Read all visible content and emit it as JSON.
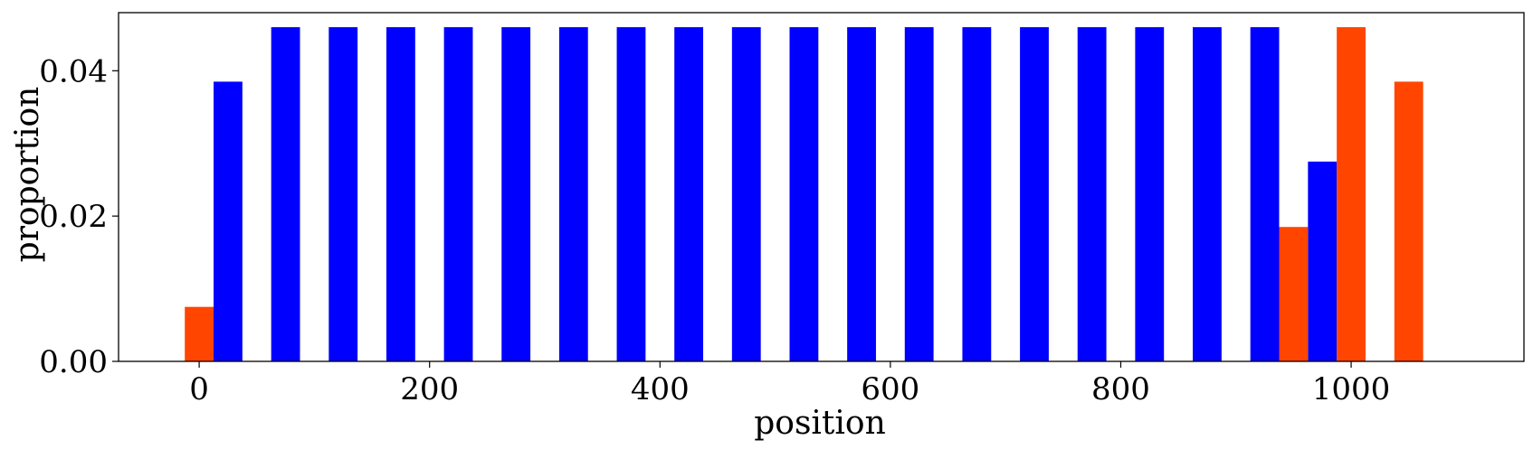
{
  "chart_data": {
    "type": "bar",
    "xlabel": "position",
    "ylabel": "proportion",
    "xlim": [
      -70,
      1150
    ],
    "ylim": [
      0,
      0.048
    ],
    "xticks": [
      0,
      200,
      400,
      600,
      800,
      1000
    ],
    "xtick_labels": [
      "0",
      "200",
      "400",
      "600",
      "800",
      "1000"
    ],
    "yticks": [
      0,
      0.02,
      0.04
    ],
    "ytick_labels": [
      "0.00",
      "0.02",
      "0.04"
    ],
    "bar_width": 25,
    "grid": false,
    "legend": "none",
    "series": [
      {
        "color": "#0000ff",
        "x": [
          25,
          75,
          125,
          175,
          225,
          275,
          325,
          375,
          425,
          475,
          525,
          575,
          625,
          675,
          725,
          775,
          825,
          875,
          925,
          975
        ],
        "values": [
          0.0385,
          0.046,
          0.046,
          0.046,
          0.046,
          0.046,
          0.046,
          0.046,
          0.046,
          0.046,
          0.046,
          0.046,
          0.046,
          0.046,
          0.046,
          0.046,
          0.046,
          0.046,
          0.046,
          0.0275
        ]
      },
      {
        "color": "#ff4500",
        "x": [
          0,
          950,
          1000,
          1050
        ],
        "values": [
          0.0075,
          0.0185,
          0.046,
          0.0385
        ]
      }
    ]
  }
}
